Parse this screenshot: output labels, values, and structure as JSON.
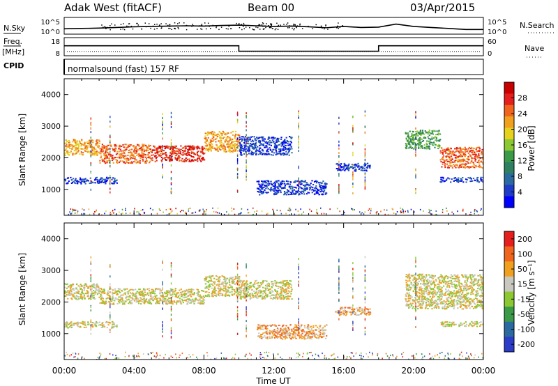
{
  "header": {
    "station": "Adak West (fitACF)",
    "beam": "Beam 00",
    "date": "03/Apr/2015"
  },
  "top_panels": {
    "nsky_label": "N.Sky",
    "noise_ticks": [
      "10^5",
      "10^0"
    ],
    "nsearch_label": "N.Search",
    "freq_label_1": "Freq.",
    "freq_label_2": "[MHz]",
    "freq_ticks": [
      18,
      8
    ],
    "nave_label": "Nave",
    "nave_ticks": [
      60,
      0
    ],
    "cpid_label": "CPID",
    "cpid_text": "normalsound (fast) 157 RF"
  },
  "colorbars": {
    "power": {
      "label": "Power [dB]",
      "ticks": [
        28,
        24,
        20,
        16,
        12,
        8,
        4
      ],
      "colors": [
        "#0000ff",
        "#1e3cc8",
        "#2a6aa0",
        "#2e8060",
        "#3a9a48",
        "#8cc832",
        "#e6d21e",
        "#f0a01e",
        "#f0641e",
        "#e61e1e",
        "#c80000"
      ]
    },
    "velocity": {
      "label": "Velocity [m s⁻¹]",
      "ticks": [
        "200",
        "100",
        "50",
        "15",
        "-15",
        "-50",
        "-100",
        "-200"
      ],
      "colors": [
        "#2a3cc8",
        "#2a6aa0",
        "#3a9a48",
        "#8cc832",
        "#c8c8c0",
        "#f0a01e",
        "#f0641e",
        "#e61e1e"
      ]
    }
  },
  "chart_data": [
    {
      "type": "line",
      "name": "noise",
      "x_hours": [
        0,
        1,
        2,
        3,
        4,
        5,
        6,
        7,
        8,
        9,
        10,
        11,
        12,
        13,
        14,
        15,
        16,
        17,
        18,
        19,
        20,
        21,
        22,
        23,
        24
      ],
      "sky_log10": [
        1.6,
        1.7,
        1.8,
        2.0,
        2.2,
        2.3,
        2.4,
        2.5,
        2.4,
        2.6,
        2.7,
        2.5,
        2.3,
        2.4,
        2.2,
        1.9,
        2.3,
        2.0,
        2.1,
        3.0,
        2.3,
        2.0,
        1.7,
        1.4,
        1.4
      ],
      "ylim": [
        0,
        5
      ]
    },
    {
      "type": "line",
      "name": "frequency",
      "xlabel": "Time UT",
      "x_hours": [
        0,
        10,
        10,
        18,
        18,
        24
      ],
      "freq_mhz": [
        13.5,
        13.5,
        10.5,
        10.5,
        13.5,
        13.5
      ],
      "ylim": [
        8,
        18
      ]
    },
    {
      "type": "heatmap",
      "name": "power",
      "ylabel": "Slant Range [km]",
      "xlim": [
        0,
        24
      ],
      "ylim": [
        180,
        4500
      ],
      "yticks": [
        1000,
        2000,
        3000,
        4000
      ],
      "features": [
        {
          "t0": 0.0,
          "t1": 2.0,
          "r0": 2100,
          "r1": 2600,
          "level": 7
        },
        {
          "t0": 2.0,
          "t1": 5.0,
          "r0": 1850,
          "r1": 2450,
          "level": 8
        },
        {
          "t0": 5.0,
          "t1": 8.0,
          "r0": 1900,
          "r1": 2400,
          "level": 9
        },
        {
          "t0": 8.0,
          "t1": 10.0,
          "r0": 2200,
          "r1": 2850,
          "level": 7
        },
        {
          "t0": 0.0,
          "t1": 3.0,
          "r0": 1200,
          "r1": 1400,
          "level": 1
        },
        {
          "t0": 10.0,
          "t1": 13.0,
          "r0": 2100,
          "r1": 2700,
          "level": 1
        },
        {
          "t0": 11.0,
          "t1": 15.0,
          "r0": 850,
          "r1": 1300,
          "level": 1
        },
        {
          "t0": 15.5,
          "t1": 17.5,
          "r0": 1600,
          "r1": 1850,
          "level": 1
        },
        {
          "t0": 19.5,
          "t1": 21.5,
          "r0": 2300,
          "r1": 2900,
          "level": 4
        },
        {
          "t0": 21.5,
          "t1": 24.0,
          "r0": 1700,
          "r1": 2350,
          "level": 8
        },
        {
          "t0": 21.5,
          "t1": 24.0,
          "r0": 1250,
          "r1": 1400,
          "level": 1
        }
      ]
    },
    {
      "type": "heatmap",
      "name": "velocity",
      "ylabel": "Slant Range [km]",
      "xlabel": "Time UT",
      "xlim": [
        0,
        24
      ],
      "ylim": [
        180,
        4500
      ],
      "yticks": [
        1000,
        2000,
        3000,
        4000
      ],
      "xticks": [
        "00:00",
        "04:00",
        "08:00",
        "12:00",
        "16:00",
        "20:00",
        "00:00"
      ],
      "features": [
        {
          "t0": 0.0,
          "t1": 2.0,
          "r0": 2100,
          "r1": 2600,
          "level": 4
        },
        {
          "t0": 2.0,
          "t1": 8.0,
          "r0": 1950,
          "r1": 2450,
          "level": 4
        },
        {
          "t0": 8.0,
          "t1": 10.0,
          "r0": 2200,
          "r1": 2850,
          "level": 4
        },
        {
          "t0": 0.0,
          "t1": 3.0,
          "r0": 1200,
          "r1": 1400,
          "level": 4
        },
        {
          "t0": 10.0,
          "t1": 13.0,
          "r0": 2100,
          "r1": 2700,
          "level": 4
        },
        {
          "t0": 11.0,
          "t1": 15.0,
          "r0": 850,
          "r1": 1300,
          "level": 5
        },
        {
          "t0": 15.5,
          "t1": 17.5,
          "r0": 1600,
          "r1": 1850,
          "level": 5
        },
        {
          "t0": 19.5,
          "t1": 24.0,
          "r0": 1800,
          "r1": 2900,
          "level": 4
        },
        {
          "t0": 21.5,
          "t1": 24.0,
          "r0": 1250,
          "r1": 1400,
          "level": 4
        }
      ]
    }
  ]
}
